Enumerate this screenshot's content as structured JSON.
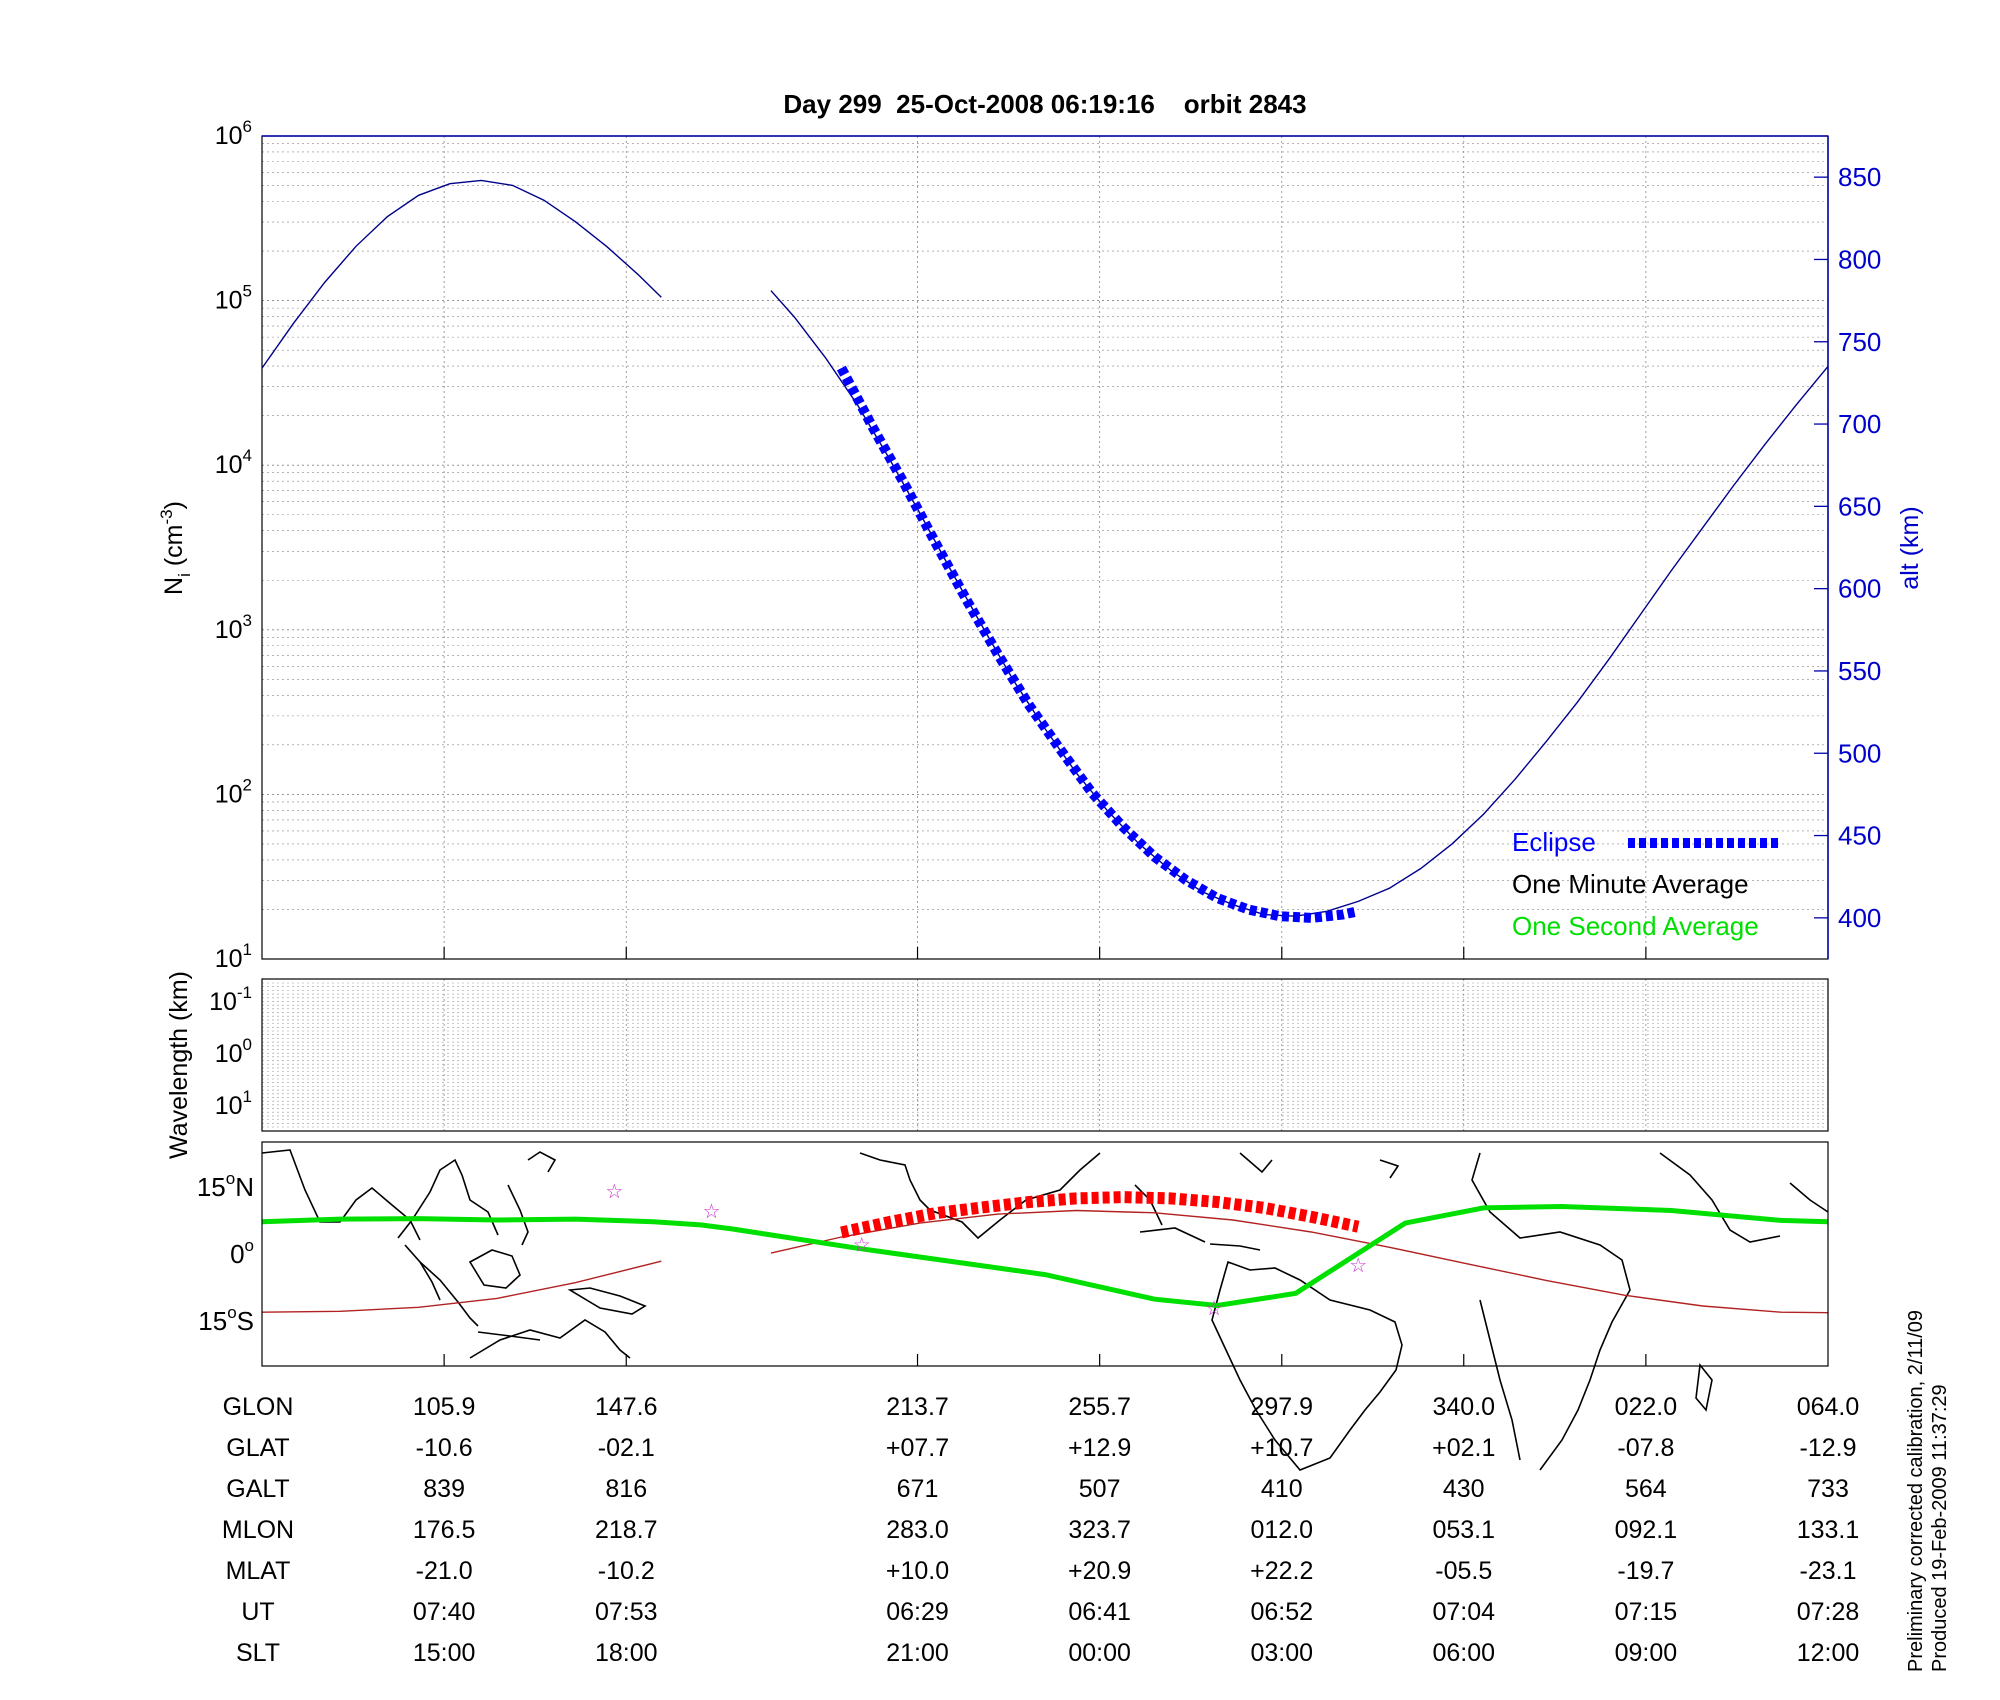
{
  "title": "Day 299  25-Oct-2008 06:19:16    orbit 2843",
  "footnote": {
    "line1": "Preliminary corrected calibration, 2/11/09",
    "line2": "Produced 19-Feb-2009 11:37:29"
  },
  "colors": {
    "altitude": "#00008b",
    "eclipse": "#0000ff",
    "one_second": "#00e000",
    "one_minute": "#000000",
    "ground_track": "#b22222",
    "eclipse_track": "#ff0000",
    "stars": "#cc33cc"
  },
  "chart_data": [
    {
      "type": "line",
      "name": "density-altitude",
      "ylabel_left": "N",
      "ylabel_left_sub": "i",
      "ylabel_left_units": " (cm",
      "ylabel_left_exp": "-3",
      "ylabel_left_close": ")",
      "ylabel_right": "alt (km)",
      "y_left_scale": "log",
      "y_left_range": [
        10,
        1000000
      ],
      "y_left_ticks": [
        {
          "base": "10",
          "exp": "1",
          "value": 10
        },
        {
          "base": "10",
          "exp": "2",
          "value": 100
        },
        {
          "base": "10",
          "exp": "3",
          "value": 1000
        },
        {
          "base": "10",
          "exp": "4",
          "value": 10000
        },
        {
          "base": "10",
          "exp": "5",
          "value": 100000
        },
        {
          "base": "10",
          "exp": "6",
          "value": 1000000
        }
      ],
      "y_right_range": [
        375,
        875
      ],
      "y_right_ticks": [
        "400",
        "450",
        "500",
        "550",
        "600",
        "650",
        "700",
        "750",
        "800",
        "850"
      ],
      "x_range": [
        0,
        1.0
      ],
      "x_grid": [
        0.1163,
        0.2326,
        0.4186,
        0.5349,
        0.6512,
        0.7674,
        0.8837
      ],
      "grid": true,
      "legend": {
        "placement": "bottom-right",
        "entries": [
          {
            "label": "Eclipse",
            "style": "dotted"
          },
          {
            "label": "One Minute Average",
            "style": "none"
          },
          {
            "label": "One Second Average",
            "style": "none"
          }
        ]
      },
      "altitude_series": {
        "name": "altitude",
        "segments": [
          {
            "x": [
              0.0,
              0.02,
              0.04,
              0.06,
              0.08,
              0.1,
              0.12,
              0.14,
              0.16,
              0.18,
              0.2,
              0.22,
              0.24,
              0.255
            ],
            "y": [
              734,
              761,
              786,
              808,
              826,
              839,
              846,
              848,
              845,
              836,
              823,
              808,
              791,
              777
            ]
          },
          {
            "x": [
              0.325,
              0.34,
              0.36,
              0.38,
              0.4,
              0.42,
              0.44,
              0.46,
              0.48,
              0.5,
              0.52,
              0.54,
              0.56,
              0.58,
              0.6,
              0.62,
              0.64,
              0.66,
              0.68,
              0.7,
              0.72,
              0.74,
              0.76,
              0.78,
              0.8,
              0.82,
              0.84,
              0.86,
              0.88,
              0.9,
              0.92,
              0.94,
              0.96,
              0.98,
              1.0
            ],
            "y": [
              781,
              765,
              740,
              712,
              680,
              646,
              611,
              577,
              544,
              515,
              488,
              465,
              445,
              429,
              416,
              408,
              402,
              401,
              404,
              410,
              418,
              430,
              445,
              463,
              484,
              507,
              531,
              557,
              584,
              611,
              637,
              663,
              688,
              712,
              735
            ]
          }
        ]
      },
      "eclipse_series": {
        "name": "Eclipse",
        "x": [
          0.37,
          0.39,
          0.41,
          0.43,
          0.45,
          0.47,
          0.49,
          0.51,
          0.53,
          0.55,
          0.57,
          0.59,
          0.61,
          0.63,
          0.65,
          0.67,
          0.69,
          0.7
        ],
        "y": [
          734,
          698,
          664,
          628,
          593,
          560,
          529,
          502,
          476,
          455,
          437,
          423,
          412,
          405,
          401,
          400,
          402,
          404
        ]
      }
    },
    {
      "type": "heatmap",
      "name": "wavelength",
      "ylabel": "Wavelength (km)",
      "y_ticks": [
        {
          "base": "10",
          "exp": "-1"
        },
        {
          "base": "10",
          "exp": "0"
        },
        {
          "base": "10",
          "exp": "1"
        }
      ],
      "grid": true
    },
    {
      "type": "scatter",
      "name": "ground-track-map",
      "y_ticks": [
        {
          "deg": "15",
          "hemi": "N",
          "value": 15
        },
        {
          "deg": "0",
          "hemi": "",
          "value": 0
        },
        {
          "deg": "15",
          "hemi": "S",
          "value": -15
        }
      ],
      "y_range": [
        -25,
        25
      ],
      "ground_track": {
        "name": "geographic",
        "segments": [
          {
            "x": [
              0.0,
              0.05,
              0.1,
              0.15,
              0.2,
              0.255
            ],
            "lat": [
              -13.0,
              -12.8,
              -11.9,
              -9.9,
              -6.4,
              -1.6
            ]
          },
          {
            "x": [
              0.325,
              0.37,
              0.42,
              0.47,
              0.52,
              0.57,
              0.62,
              0.67,
              0.72,
              0.77,
              0.82,
              0.87,
              0.92,
              0.97,
              1.0
            ],
            "lat": [
              0.2,
              3.8,
              6.9,
              8.9,
              9.7,
              9.2,
              7.6,
              4.9,
              1.5,
              -2.2,
              -5.9,
              -9.2,
              -11.6,
              -13.0,
              -13.1
            ]
          }
        ]
      },
      "eclipse_track": {
        "x": [
          0.37,
          0.4,
          0.43,
          0.46,
          0.49,
          0.52,
          0.55,
          0.58,
          0.61,
          0.64,
          0.67,
          0.7
        ],
        "lat": [
          4.8,
          7.1,
          9.1,
          10.4,
          11.6,
          12.4,
          12.7,
          12.4,
          11.6,
          10.3,
          8.3,
          6.1
        ]
      },
      "magnetic_track": {
        "x": [
          0.0,
          0.05,
          0.1,
          0.15,
          0.2,
          0.25,
          0.28,
          0.3,
          0.38,
          0.5,
          0.57,
          0.61,
          0.66,
          0.73,
          0.78,
          0.83,
          0.9,
          0.97,
          1.0
        ],
        "lat": [
          7.2,
          7.8,
          7.9,
          7.6,
          7.8,
          7.2,
          6.5,
          5.6,
          1.3,
          -4.6,
          -10.1,
          -11.5,
          -8.8,
          6.9,
          10.3,
          10.6,
          9.7,
          7.5,
          7.2
        ]
      },
      "stars": {
        "x": [
          0.225,
          0.287,
          0.383,
          0.608,
          0.7
        ],
        "lat": [
          14.1,
          9.6,
          2.1,
          -12.1,
          -2.5
        ]
      }
    }
  ],
  "table": {
    "row_labels": [
      "GLON",
      "GLAT",
      "GALT",
      "MLON",
      "MLAT",
      "UT",
      "SLT"
    ],
    "columns": [
      {
        "x": 0.1163,
        "values": [
          "105.9",
          "-10.6",
          "839",
          "176.5",
          "-21.0",
          "07:40",
          "15:00"
        ]
      },
      {
        "x": 0.2326,
        "values": [
          "147.6",
          "-02.1",
          "816",
          "218.7",
          "-10.2",
          "07:53",
          "18:00"
        ]
      },
      {
        "x": 0.4186,
        "values": [
          "213.7",
          "+07.7",
          "671",
          "283.0",
          "+10.0",
          "06:29",
          "21:00"
        ]
      },
      {
        "x": 0.5349,
        "values": [
          "255.7",
          "+12.9",
          "507",
          "323.7",
          "+20.9",
          "06:41",
          "00:00"
        ]
      },
      {
        "x": 0.6512,
        "values": [
          "297.9",
          "+10.7",
          "410",
          "012.0",
          "+22.2",
          "06:52",
          "03:00"
        ]
      },
      {
        "x": 0.7674,
        "values": [
          "340.0",
          "+02.1",
          "430",
          "053.1",
          "-05.5",
          "07:04",
          "06:00"
        ]
      },
      {
        "x": 0.8837,
        "values": [
          "022.0",
          "-07.8",
          "564",
          "092.1",
          "-19.7",
          "07:15",
          "09:00"
        ]
      },
      {
        "x": 1.0,
        "values": [
          "064.0",
          "-12.9",
          "733",
          "133.1",
          "-23.1",
          "07:28",
          "12:00"
        ]
      }
    ]
  }
}
